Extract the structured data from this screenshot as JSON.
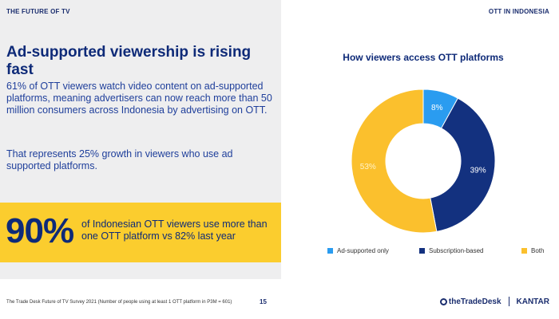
{
  "header": {
    "left_label": "THE FUTURE OF TV",
    "right_label": "OTT IN INDONESIA"
  },
  "left": {
    "headline": "Ad-supported viewership is rising fast",
    "paragraph1": "61% of OTT viewers watch video content on ad-supported platforms, meaning advertisers can now reach more than 50 million consumers across Indonesia by advertising on OTT.",
    "paragraph2": "That represents 25% growth in viewers who use ad supported platforms.",
    "stat": {
      "value": "90%",
      "text": "of Indonesian OTT viewers use more than one OTT platform vs 82% last year"
    }
  },
  "chart_data": {
    "type": "pie",
    "title": "How viewers access OTT platforms",
    "series": [
      {
        "name": "Ad-supported only",
        "value": 8,
        "label": "8%",
        "color": "#2a9cf0",
        "label_color": "#ffffff"
      },
      {
        "name": "Subscription-based",
        "value": 39,
        "label": "39%",
        "color": "#13317f",
        "label_color": "#ffffff"
      },
      {
        "name": "Both",
        "value": 53,
        "label": "53%",
        "color": "#fbc02d",
        "label_color": "#fff3c9"
      }
    ],
    "donut": true,
    "legend_position": "bottom"
  },
  "footer": {
    "note": "The Trade Desk Future of TV Survey 2021 (Number of people using at least 1 OTT platform in P3M = 601)",
    "page": "15",
    "logo_ttd": "theTradeDesk",
    "logo_kantar": "KANTAR"
  }
}
